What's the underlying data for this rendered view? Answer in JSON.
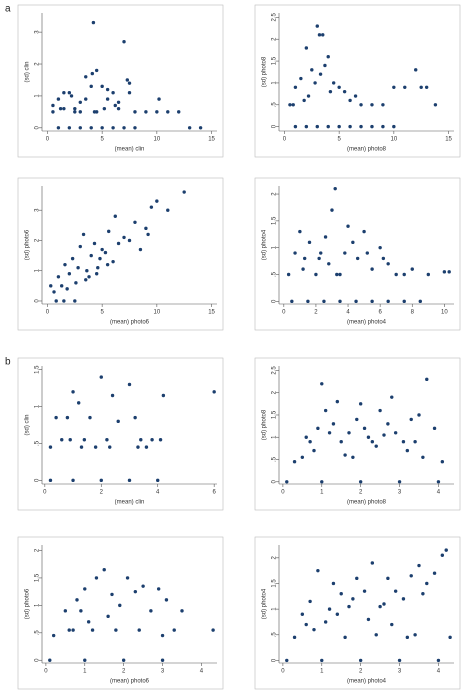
{
  "labels": [
    "a",
    "b"
  ],
  "chart_data": [
    {
      "type": "scatter",
      "x_label": "(mean) clin",
      "y_label": "(sd) clin",
      "color": "#1c3f6e",
      "xlim": [
        -0.5,
        15.5
      ],
      "ylim": [
        -0.1,
        3.6
      ],
      "xticks": [
        0,
        5,
        10,
        15
      ],
      "yticks": [
        0,
        1,
        2,
        3
      ],
      "x": [
        0.5,
        1,
        1.5,
        2,
        2.5,
        3,
        3.5,
        4,
        4.2,
        4.5,
        5,
        5.5,
        6,
        6.5,
        7,
        7.5,
        8,
        1,
        2,
        3,
        4,
        5,
        6,
        7,
        8,
        9,
        10,
        11,
        12,
        0.5,
        1.5,
        2.5,
        3.5,
        4.5,
        5.5,
        6.5,
        7.5,
        4.1,
        7.3,
        10.2,
        13,
        14,
        3,
        4.3,
        1.2,
        2.2,
        5.2,
        6.2
      ],
      "values": [
        0.5,
        0.9,
        0.6,
        1.1,
        0.5,
        0.8,
        1.6,
        1.3,
        3.3,
        1.8,
        1.3,
        0.9,
        1.1,
        0.6,
        2.7,
        1.4,
        0.5,
        0,
        0,
        0,
        0,
        0,
        0,
        0,
        0,
        0.5,
        0.5,
        0.5,
        0.5,
        0.7,
        1.1,
        0.6,
        0.9,
        0.5,
        1.2,
        0.8,
        1.1,
        1.7,
        1.5,
        0.9,
        0,
        0,
        0.5,
        0.5,
        0.6,
        1,
        0.6,
        0.7
      ]
    },
    {
      "type": "scatter",
      "x_label": "(mean) photo8",
      "y_label": "(sd) photo8",
      "color": "#1c3f6e",
      "xlim": [
        -0.5,
        15.5
      ],
      "ylim": [
        -0.1,
        2.6
      ],
      "xticks": [
        0,
        5,
        10,
        15
      ],
      "yticks": [
        0,
        {
          "value": 0.5,
          "label": ".5"
        },
        1,
        1.5,
        2,
        2.5
      ],
      "x": [
        0.5,
        1,
        1.5,
        2,
        2.5,
        3,
        3.2,
        3.5,
        4,
        4.5,
        5,
        5.5,
        6,
        7,
        8,
        9,
        10,
        11,
        12,
        13,
        1,
        2,
        3,
        4,
        5,
        6,
        7,
        8,
        9,
        10,
        2.2,
        3.3,
        1.8,
        2.8,
        4.2,
        0.8,
        12.5,
        13.8,
        6.5,
        3.7
      ],
      "values": [
        0.5,
        0.9,
        1.1,
        1.8,
        1.3,
        2.3,
        2.1,
        2.1,
        1.6,
        1.0,
        0.9,
        0.8,
        0.6,
        0.5,
        0.5,
        0.5,
        0.9,
        0.9,
        1.3,
        0.9,
        0,
        0,
        0,
        0,
        0,
        0,
        0,
        0,
        0,
        0,
        0.7,
        1.2,
        0.6,
        1.0,
        0.8,
        0.5,
        0.9,
        0.5,
        0.7,
        1.4
      ]
    },
    {
      "type": "scatter",
      "x_label": "(mean) photo6",
      "y_label": "(sd) photo6",
      "color": "#1c3f6e",
      "xlim": [
        -0.5,
        15.5
      ],
      "ylim": [
        -0.1,
        3.8
      ],
      "xticks": [
        0,
        5,
        10,
        15
      ],
      "yticks": [
        0,
        1,
        2,
        3
      ],
      "x": [
        0.3,
        0.6,
        1,
        1.3,
        1.6,
        2,
        2.3,
        2.6,
        3,
        3.3,
        3.6,
        4,
        4.3,
        4.6,
        5,
        5.3,
        5.6,
        6,
        6.5,
        7,
        7.5,
        8,
        8.5,
        9,
        9.5,
        10,
        11,
        12.5,
        1.5,
        2.5,
        3.5,
        4.5,
        5.5,
        0.8,
        1.8,
        2.8,
        3.8,
        4.8,
        6.2,
        9.2
      ],
      "values": [
        0.5,
        0.3,
        0.8,
        0.5,
        1.2,
        0.9,
        1.4,
        0.6,
        1.8,
        2.2,
        1.0,
        1.5,
        1.9,
        1.1,
        1.7,
        1.6,
        2.3,
        1.3,
        1.9,
        2.1,
        2.0,
        2.6,
        1.7,
        2.4,
        3.1,
        3.3,
        3.0,
        3.6,
        0,
        0,
        0.7,
        0.9,
        1.2,
        0,
        0.4,
        1.1,
        0.8,
        1.4,
        2.8,
        2.2
      ]
    },
    {
      "type": "scatter",
      "x_label": "(mean) photo4",
      "y_label": "(sd) photo4",
      "color": "#1c3f6e",
      "xlim": [
        -0.3,
        10.6
      ],
      "ylim": [
        -0.05,
        2.15
      ],
      "xticks": [
        0,
        2,
        4,
        6,
        8,
        10
      ],
      "yticks": [
        0,
        {
          "value": 0.5,
          "label": ".5"
        },
        1,
        1.5,
        2
      ],
      "x": [
        0.3,
        0.7,
        1,
        1.3,
        1.6,
        2,
        2.3,
        2.6,
        3,
        3.2,
        3.5,
        3.8,
        4,
        4.3,
        4.6,
        5,
        5.5,
        6,
        6.5,
        7,
        7.5,
        8,
        9,
        10,
        10.3,
        0.5,
        1.5,
        2.5,
        3.5,
        4.5,
        5.5,
        6.5,
        7.5,
        8.5,
        1.2,
        2.2,
        3.3,
        2.8,
        5.2,
        6.2
      ],
      "values": [
        0.5,
        0.9,
        1.3,
        0.8,
        1.1,
        0.5,
        0.9,
        1.2,
        1.7,
        2.1,
        0.5,
        0.9,
        1.4,
        1.1,
        0.8,
        1.3,
        0.6,
        1.0,
        0.7,
        0.5,
        0.5,
        0.6,
        0.5,
        0.55,
        0.55,
        0,
        0,
        0,
        0,
        0,
        0,
        0,
        0,
        0,
        0.6,
        0.8,
        0.5,
        0.7,
        0.9,
        0.8
      ]
    },
    {
      "type": "scatter",
      "x_label": "(mean) clin",
      "y_label": "(sd) clin",
      "color": "#1c3f6e",
      "xlim": [
        -0.1,
        6.1
      ],
      "ylim": [
        -0.05,
        1.55
      ],
      "xticks": [
        0,
        2,
        4,
        6
      ],
      "yticks": [
        0,
        {
          "value": 0.5,
          "label": ".5"
        },
        1,
        1.5
      ],
      "x": [
        0.2,
        0.4,
        0.6,
        0.8,
        1,
        1.2,
        1.4,
        1.6,
        1.8,
        2,
        2.2,
        2.4,
        2.6,
        3,
        3.2,
        3.4,
        3.6,
        3.8,
        4.2,
        6,
        0.2,
        1,
        2,
        3,
        4,
        1.3,
        2.3,
        3.3,
        4.1,
        0.9
      ],
      "values": [
        0.45,
        0.85,
        0.55,
        0.85,
        1.2,
        1.05,
        0.55,
        0.85,
        0.45,
        1.4,
        0.55,
        1.15,
        0.8,
        1.3,
        0.85,
        0.55,
        0.45,
        0.55,
        1.15,
        1.2,
        0,
        0,
        0,
        0,
        0,
        0.45,
        0.45,
        0.45,
        0.55,
        0.55
      ]
    },
    {
      "type": "scatter",
      "x_label": "(mean) photo8",
      "y_label": "(sd) photo8",
      "color": "#1c3f6e",
      "xlim": [
        -0.1,
        4.4
      ],
      "ylim": [
        -0.05,
        2.6
      ],
      "xticks": [
        0,
        1,
        2,
        3,
        4
      ],
      "yticks": [
        0,
        {
          "value": 0.5,
          "label": ".5"
        },
        1,
        1.5,
        2,
        2.5
      ],
      "x": [
        0.3,
        0.5,
        0.7,
        0.9,
        1,
        1.1,
        1.3,
        1.5,
        1.7,
        1.9,
        2,
        2.1,
        2.3,
        2.5,
        2.7,
        2.9,
        3.1,
        3.3,
        3.5,
        3.7,
        3.9,
        4.1,
        0.1,
        1,
        2,
        3,
        4,
        0.8,
        1.6,
        2.4,
        3.2,
        1.2,
        2.2,
        2.8,
        3.6,
        0.6,
        1.4,
        2.6,
        3.4,
        1.8
      ],
      "values": [
        0.45,
        0.55,
        0.9,
        1.2,
        2.2,
        1.6,
        1.3,
        0.9,
        1.1,
        1.4,
        1.75,
        1.2,
        0.9,
        1.6,
        1.3,
        1.1,
        0.9,
        1.4,
        1.5,
        2.3,
        1.2,
        0.45,
        0,
        0,
        0,
        0,
        0,
        0.7,
        0.6,
        0.8,
        0.7,
        1.1,
        1.0,
        1.9,
        0.55,
        1.0,
        1.8,
        1.05,
        0.9,
        0.55
      ]
    },
    {
      "type": "scatter",
      "x_label": "(mean) photo6",
      "y_label": "(sd) photo6",
      "color": "#1c3f6e",
      "xlim": [
        -0.1,
        4.4
      ],
      "ylim": [
        -0.05,
        2.1
      ],
      "xticks": [
        0,
        1,
        2,
        3,
        4
      ],
      "yticks": [
        0,
        {
          "value": 0.5,
          "label": ".5"
        },
        1,
        1.5,
        2
      ],
      "x": [
        0.2,
        0.5,
        0.7,
        0.9,
        1,
        1.1,
        1.3,
        1.5,
        1.7,
        1.9,
        2.1,
        2.3,
        2.5,
        2.7,
        2.9,
        3.1,
        3.3,
        3.5,
        4.3,
        0.1,
        1,
        2,
        3,
        0.6,
        1.2,
        1.8,
        2.4,
        3,
        0.8,
        1.6
      ],
      "values": [
        0.45,
        0.9,
        0.55,
        0.9,
        1.3,
        0.7,
        1.5,
        1.65,
        1.2,
        1.0,
        1.5,
        1.25,
        1.35,
        0.9,
        1.3,
        1.1,
        0.55,
        0.9,
        0.55,
        0,
        0,
        0,
        0,
        0.55,
        0.55,
        0.55,
        0.55,
        0.45,
        1.1,
        0.8
      ]
    },
    {
      "type": "scatter",
      "x_label": "(mean) photo4",
      "y_label": "(sd) photo4",
      "color": "#1c3f6e",
      "xlim": [
        -0.1,
        4.4
      ],
      "ylim": [
        -0.05,
        2.25
      ],
      "xticks": [
        0,
        1,
        2,
        3,
        4
      ],
      "yticks": [
        0,
        {
          "value": 0.5,
          "label": ".5"
        },
        1,
        1.5,
        2
      ],
      "x": [
        0.3,
        0.5,
        0.7,
        0.9,
        1.1,
        1.3,
        1.5,
        1.7,
        1.9,
        2.1,
        2.3,
        2.5,
        2.7,
        2.9,
        3.1,
        3.3,
        3.5,
        3.7,
        3.9,
        4.1,
        4.2,
        0.1,
        1,
        2,
        3,
        4,
        0.8,
        1.6,
        2.4,
        3.2,
        1.2,
        2.2,
        2.8,
        3.6,
        1.4,
        2.6,
        3.4,
        4.3,
        0.6,
        1.8
      ],
      "values": [
        0.45,
        0.9,
        1.15,
        1.75,
        0.75,
        1.5,
        1.3,
        1.05,
        1.6,
        1.35,
        1.9,
        1.05,
        1.6,
        1.35,
        1.2,
        1.65,
        1.85,
        1.5,
        1.7,
        2.05,
        2.15,
        0,
        0,
        0,
        0,
        0,
        0.6,
        0.45,
        0.5,
        0.45,
        1.0,
        0.8,
        0.7,
        1.3,
        0.9,
        1.1,
        0.5,
        0.45,
        0.7,
        1.2
      ]
    }
  ]
}
